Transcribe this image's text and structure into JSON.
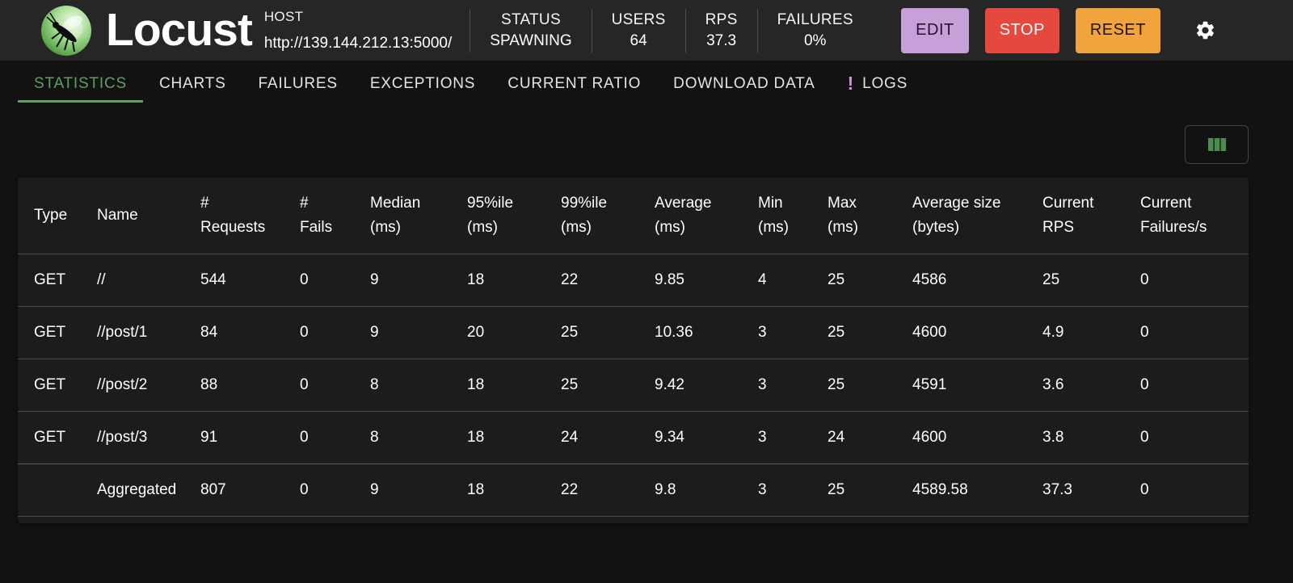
{
  "colors": {
    "header_bg": "#262626",
    "page_bg": "#121212",
    "card_bg": "#1c1c1c",
    "accent_green": "#5f9e64",
    "edit_button_bg": "#c79fd9",
    "stop_button_bg": "#e5493d",
    "reset_button_bg": "#f2a43c",
    "logs_badge": "#ce93d8",
    "columns_icon_green": "#4d8c4f"
  },
  "header": {
    "app_name": "Locust",
    "host": {
      "label": "HOST",
      "url": "http://139.144.212.13:5000/"
    },
    "stats": [
      {
        "label": "STATUS",
        "value": "SPAWNING"
      },
      {
        "label": "USERS",
        "value": "64"
      },
      {
        "label": "RPS",
        "value": "37.3"
      },
      {
        "label": "FAILURES",
        "value": "0%"
      }
    ],
    "buttons": {
      "edit": "EDIT",
      "stop": "STOP",
      "reset": "RESET"
    }
  },
  "tabs": {
    "items": [
      {
        "label": "STATISTICS",
        "active": true
      },
      {
        "label": "CHARTS"
      },
      {
        "label": "FAILURES"
      },
      {
        "label": "EXCEPTIONS"
      },
      {
        "label": "CURRENT RATIO"
      },
      {
        "label": "DOWNLOAD DATA"
      },
      {
        "label": "LOGS",
        "badge": "!"
      }
    ]
  },
  "table": {
    "columns": [
      {
        "lines": [
          "Type"
        ]
      },
      {
        "lines": [
          "Name"
        ]
      },
      {
        "lines": [
          "#",
          "Requests"
        ]
      },
      {
        "lines": [
          "#",
          "Fails"
        ]
      },
      {
        "lines": [
          "Median",
          "(ms)"
        ]
      },
      {
        "lines": [
          "95%ile",
          "(ms)"
        ]
      },
      {
        "lines": [
          "99%ile",
          "(ms)"
        ]
      },
      {
        "lines": [
          "Average",
          "(ms)"
        ]
      },
      {
        "lines": [
          "Min",
          "(ms)"
        ]
      },
      {
        "lines": [
          "Max",
          "(ms)"
        ]
      },
      {
        "lines": [
          "Average size",
          "(bytes)"
        ]
      },
      {
        "lines": [
          "Current",
          "RPS"
        ]
      },
      {
        "lines": [
          "Current",
          "Failures/s"
        ]
      }
    ],
    "rows": [
      {
        "cells": [
          "GET",
          "//",
          "544",
          "0",
          "9",
          "18",
          "22",
          "9.85",
          "4",
          "25",
          "4586",
          "25",
          "0"
        ]
      },
      {
        "cells": [
          "GET",
          "//post/1",
          "84",
          "0",
          "9",
          "20",
          "25",
          "10.36",
          "3",
          "25",
          "4600",
          "4.9",
          "0"
        ]
      },
      {
        "cells": [
          "GET",
          "//post/2",
          "88",
          "0",
          "8",
          "18",
          "25",
          "9.42",
          "3",
          "25",
          "4591",
          "3.6",
          "0"
        ]
      },
      {
        "cells": [
          "GET",
          "//post/3",
          "91",
          "0",
          "8",
          "18",
          "24",
          "9.34",
          "3",
          "24",
          "4600",
          "3.8",
          "0"
        ]
      },
      {
        "cells": [
          "",
          "Aggregated",
          "807",
          "0",
          "9",
          "18",
          "22",
          "9.8",
          "3",
          "25",
          "4589.58",
          "37.3",
          "0"
        ],
        "aggregated": true
      }
    ]
  }
}
